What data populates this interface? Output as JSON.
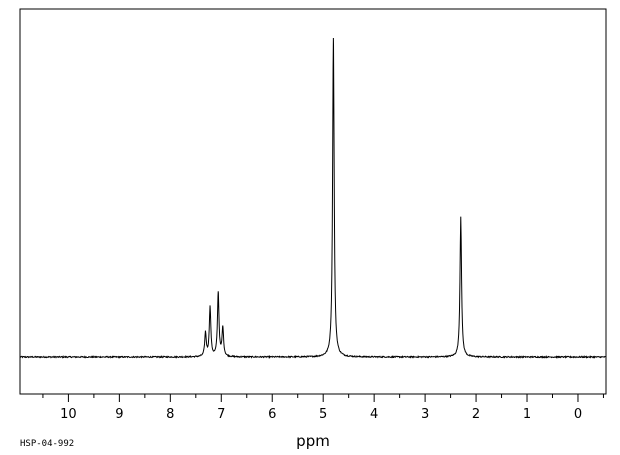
{
  "chart_data": {
    "type": "line",
    "title": "",
    "xlabel": "ppm",
    "ylabel": "",
    "xlim": [
      10.95,
      -0.55
    ],
    "x_reversed": true,
    "ylim": [
      -0.12,
      1.0
    ],
    "xticks": [
      10,
      9,
      8,
      7,
      6,
      5,
      4,
      3,
      2,
      1,
      0
    ],
    "minor_tick_step": 0.5,
    "grid": false,
    "spectrum_id": "HSP-04-992",
    "series": [
      {
        "peaks": [
          {
            "x": 7.31,
            "y": 0.075
          },
          {
            "x": 7.22,
            "y": 0.155
          },
          {
            "x": 7.06,
            "y": 0.2
          },
          {
            "x": 6.97,
            "y": 0.09
          },
          {
            "x": 4.8,
            "y": 1.0
          },
          {
            "x": 2.3,
            "y": 0.44
          }
        ]
      }
    ]
  }
}
